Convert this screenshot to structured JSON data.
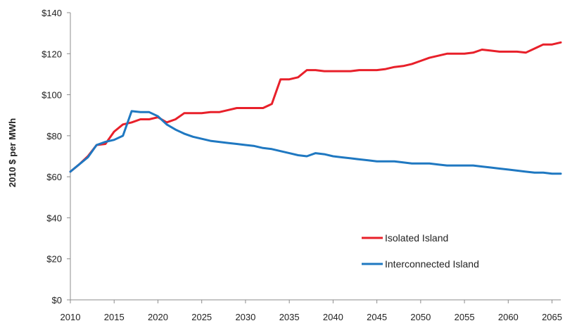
{
  "chart_data": {
    "type": "line",
    "title": "",
    "xlabel": "",
    "ylabel": "2010 $ per MWh",
    "xlim": [
      2010,
      2066
    ],
    "ylim": [
      0,
      140
    ],
    "x_ticks": [
      2010,
      2015,
      2020,
      2025,
      2030,
      2035,
      2040,
      2045,
      2050,
      2055,
      2060,
      2065
    ],
    "y_ticks": [
      {
        "value": 0,
        "label": "$0"
      },
      {
        "value": 20,
        "label": "$20"
      },
      {
        "value": 40,
        "label": "$40"
      },
      {
        "value": 60,
        "label": "$60"
      },
      {
        "value": 80,
        "label": "$80"
      },
      {
        "value": 100,
        "label": "$100"
      },
      {
        "value": 120,
        "label": "$120"
      },
      {
        "value": 140,
        "label": "$140"
      }
    ],
    "grid": false,
    "legend_position": "bottom-right",
    "series": [
      {
        "name": "Isolated Island",
        "color": "#e8202a",
        "points": [
          [
            2010,
            62.5
          ],
          [
            2011,
            66
          ],
          [
            2012,
            70
          ],
          [
            2013,
            75.5
          ],
          [
            2014,
            76
          ],
          [
            2015,
            82
          ],
          [
            2016,
            85.5
          ],
          [
            2017,
            86.5
          ],
          [
            2018,
            88
          ],
          [
            2019,
            88
          ],
          [
            2020,
            89
          ],
          [
            2021,
            86.5
          ],
          [
            2022,
            88
          ],
          [
            2023,
            91
          ],
          [
            2024,
            91
          ],
          [
            2025,
            91
          ],
          [
            2026,
            91.5
          ],
          [
            2027,
            91.5
          ],
          [
            2028,
            92.5
          ],
          [
            2029,
            93.5
          ],
          [
            2030,
            93.5
          ],
          [
            2031,
            93.5
          ],
          [
            2032,
            93.5
          ],
          [
            2033,
            95.5
          ],
          [
            2034,
            107.5
          ],
          [
            2035,
            107.5
          ],
          [
            2036,
            108.5
          ],
          [
            2037,
            112
          ],
          [
            2038,
            112
          ],
          [
            2039,
            111.5
          ],
          [
            2040,
            111.5
          ],
          [
            2041,
            111.5
          ],
          [
            2042,
            111.5
          ],
          [
            2043,
            112
          ],
          [
            2044,
            112
          ],
          [
            2045,
            112
          ],
          [
            2046,
            112.5
          ],
          [
            2047,
            113.5
          ],
          [
            2048,
            114
          ],
          [
            2049,
            115
          ],
          [
            2050,
            116.5
          ],
          [
            2051,
            118
          ],
          [
            2052,
            119
          ],
          [
            2053,
            120
          ],
          [
            2054,
            120
          ],
          [
            2055,
            120
          ],
          [
            2056,
            120.5
          ],
          [
            2057,
            122
          ],
          [
            2058,
            121.5
          ],
          [
            2059,
            121
          ],
          [
            2060,
            121
          ],
          [
            2061,
            121
          ],
          [
            2062,
            120.5
          ],
          [
            2063,
            122.5
          ],
          [
            2064,
            124.5
          ],
          [
            2065,
            124.5
          ],
          [
            2066,
            125.5
          ]
        ]
      },
      {
        "name": "Interconnected Island",
        "color": "#1f78c1",
        "points": [
          [
            2010,
            62.5
          ],
          [
            2011,
            66
          ],
          [
            2012,
            69.5
          ],
          [
            2013,
            75.5
          ],
          [
            2014,
            77
          ],
          [
            2015,
            78
          ],
          [
            2016,
            80
          ],
          [
            2017,
            92
          ],
          [
            2018,
            91.5
          ],
          [
            2019,
            91.5
          ],
          [
            2020,
            89.5
          ],
          [
            2021,
            85.5
          ],
          [
            2022,
            83
          ],
          [
            2023,
            81
          ],
          [
            2024,
            79.5
          ],
          [
            2025,
            78.5
          ],
          [
            2026,
            77.5
          ],
          [
            2027,
            77
          ],
          [
            2028,
            76.5
          ],
          [
            2029,
            76
          ],
          [
            2030,
            75.5
          ],
          [
            2031,
            75
          ],
          [
            2032,
            74
          ],
          [
            2033,
            73.5
          ],
          [
            2034,
            72.5
          ],
          [
            2035,
            71.5
          ],
          [
            2036,
            70.5
          ],
          [
            2037,
            70
          ],
          [
            2038,
            71.5
          ],
          [
            2039,
            71
          ],
          [
            2040,
            70
          ],
          [
            2041,
            69.5
          ],
          [
            2042,
            69
          ],
          [
            2043,
            68.5
          ],
          [
            2044,
            68
          ],
          [
            2045,
            67.5
          ],
          [
            2046,
            67.5
          ],
          [
            2047,
            67.5
          ],
          [
            2048,
            67
          ],
          [
            2049,
            66.5
          ],
          [
            2050,
            66.5
          ],
          [
            2051,
            66.5
          ],
          [
            2052,
            66
          ],
          [
            2053,
            65.5
          ],
          [
            2054,
            65.5
          ],
          [
            2055,
            65.5
          ],
          [
            2056,
            65.5
          ],
          [
            2057,
            65
          ],
          [
            2058,
            64.5
          ],
          [
            2059,
            64
          ],
          [
            2060,
            63.5
          ],
          [
            2061,
            63
          ],
          [
            2062,
            62.5
          ],
          [
            2063,
            62
          ],
          [
            2064,
            62
          ],
          [
            2065,
            61.5
          ],
          [
            2066,
            61.5
          ]
        ]
      }
    ]
  }
}
